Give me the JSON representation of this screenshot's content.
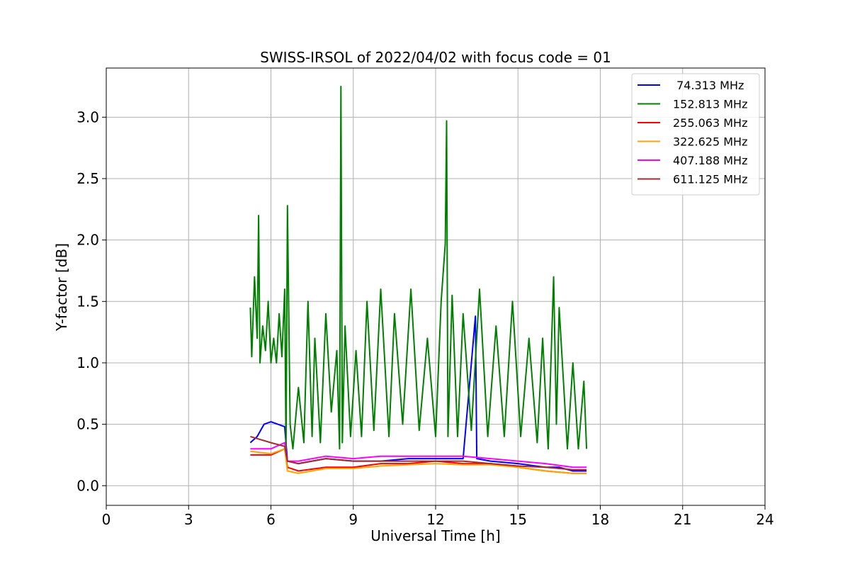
{
  "chart_data": {
    "type": "line",
    "title": "SWISS-IRSOL of 2022/04/02 with focus code = 01",
    "xlabel": "Universal Time [h]",
    "ylabel": "Y-factor [dB]",
    "xlim": [
      0,
      24
    ],
    "ylim": [
      -0.16,
      3.4
    ],
    "xticks": [
      0,
      3,
      6,
      9,
      12,
      15,
      18,
      21,
      24
    ],
    "yticks": [
      0.0,
      0.5,
      1.0,
      1.5,
      2.0,
      2.5,
      3.0
    ],
    "xtick_labels": [
      "0",
      "3",
      "6",
      "9",
      "12",
      "15",
      "18",
      "21",
      "24"
    ],
    "ytick_labels": [
      "0.0",
      "0.5",
      "1.0",
      "1.5",
      "2.0",
      "2.5",
      "3.0"
    ],
    "grid": true,
    "legend_position": "top-right",
    "series": [
      {
        "name": " 74.313 MHz",
        "color": "#0000ff",
        "x": [
          5.25,
          5.5,
          5.75,
          6.0,
          6.25,
          6.5,
          6.6,
          7.0,
          8.0,
          9.0,
          10.0,
          11.0,
          12.0,
          13.0,
          13.45,
          13.5,
          14.0,
          15.0,
          16.0,
          16.5,
          17.0,
          17.5
        ],
        "y": [
          0.35,
          0.4,
          0.5,
          0.52,
          0.5,
          0.48,
          0.2,
          0.18,
          0.22,
          0.2,
          0.2,
          0.22,
          0.22,
          0.22,
          1.38,
          0.22,
          0.2,
          0.18,
          0.15,
          0.15,
          0.12,
          0.12
        ]
      },
      {
        "name": "152.813 MHz",
        "color": "#008000",
        "x": [
          5.25,
          5.3,
          5.4,
          5.5,
          5.55,
          5.6,
          5.7,
          5.8,
          5.9,
          6.0,
          6.1,
          6.2,
          6.3,
          6.4,
          6.5,
          6.55,
          6.6,
          6.7,
          6.8,
          7.0,
          7.2,
          7.35,
          7.5,
          7.6,
          7.8,
          8.0,
          8.2,
          8.4,
          8.5,
          8.55,
          8.6,
          8.7,
          8.9,
          9.1,
          9.3,
          9.5,
          9.75,
          10.0,
          10.3,
          10.5,
          10.8,
          11.1,
          11.4,
          11.7,
          12.0,
          12.2,
          12.35,
          12.4,
          12.45,
          12.6,
          12.8,
          13.0,
          13.3,
          13.6,
          13.9,
          14.2,
          14.5,
          14.8,
          15.1,
          15.4,
          15.7,
          15.9,
          16.1,
          16.3,
          16.4,
          16.5,
          16.8,
          17.0,
          17.2,
          17.4,
          17.5
        ],
        "y": [
          1.45,
          1.05,
          1.7,
          1.2,
          2.2,
          1.0,
          1.3,
          1.1,
          1.5,
          1.0,
          1.2,
          1.0,
          1.4,
          1.05,
          1.6,
          0.3,
          2.28,
          0.5,
          0.3,
          0.8,
          0.35,
          1.5,
          0.4,
          1.2,
          0.35,
          1.4,
          0.6,
          1.1,
          0.3,
          3.25,
          0.35,
          1.3,
          0.4,
          1.1,
          0.4,
          1.5,
          0.45,
          1.6,
          0.4,
          1.4,
          0.5,
          1.6,
          0.45,
          1.2,
          0.4,
          1.5,
          1.97,
          2.97,
          0.4,
          1.55,
          0.4,
          1.4,
          0.45,
          1.6,
          0.4,
          1.3,
          0.4,
          1.5,
          0.4,
          1.2,
          0.35,
          1.2,
          0.3,
          1.7,
          0.5,
          1.45,
          0.3,
          1.0,
          0.3,
          0.85,
          0.3
        ]
      },
      {
        "name": "255.063 MHz",
        "color": "#ff0000",
        "x": [
          5.25,
          6.0,
          6.5,
          6.6,
          7.0,
          8.0,
          9.0,
          10.0,
          11.0,
          12.0,
          13.0,
          14.0,
          15.0,
          16.0,
          17.0,
          17.5
        ],
        "y": [
          0.25,
          0.25,
          0.3,
          0.15,
          0.12,
          0.15,
          0.15,
          0.18,
          0.18,
          0.2,
          0.18,
          0.18,
          0.15,
          0.12,
          0.1,
          0.1
        ]
      },
      {
        "name": "322.625 MHz",
        "color": "#ffa500",
        "x": [
          5.25,
          6.0,
          6.5,
          6.6,
          7.0,
          8.0,
          9.0,
          10.0,
          11.0,
          12.0,
          13.0,
          14.0,
          15.0,
          16.0,
          17.0,
          17.5
        ],
        "y": [
          0.28,
          0.26,
          0.3,
          0.12,
          0.1,
          0.14,
          0.14,
          0.16,
          0.17,
          0.18,
          0.17,
          0.17,
          0.15,
          0.12,
          0.1,
          0.1
        ]
      },
      {
        "name": "407.188 MHz",
        "color": "#ff00ff",
        "x": [
          5.25,
          6.0,
          6.5,
          6.6,
          7.0,
          8.0,
          9.0,
          10.0,
          11.0,
          12.0,
          13.0,
          14.0,
          15.0,
          16.0,
          17.0,
          17.5
        ],
        "y": [
          0.3,
          0.3,
          0.35,
          0.2,
          0.2,
          0.24,
          0.22,
          0.24,
          0.24,
          0.24,
          0.24,
          0.22,
          0.2,
          0.18,
          0.15,
          0.15
        ]
      },
      {
        "name": "611.125 MHz",
        "color": "#a52a2a",
        "x": [
          5.25,
          6.0,
          6.5,
          6.6,
          7.0,
          8.0,
          9.0,
          10.0,
          11.0,
          12.0,
          13.0,
          14.0,
          15.0,
          16.0,
          17.0,
          17.5
        ],
        "y": [
          0.4,
          0.35,
          0.32,
          0.2,
          0.18,
          0.22,
          0.2,
          0.2,
          0.2,
          0.2,
          0.2,
          0.18,
          0.16,
          0.15,
          0.13,
          0.13
        ]
      }
    ]
  }
}
